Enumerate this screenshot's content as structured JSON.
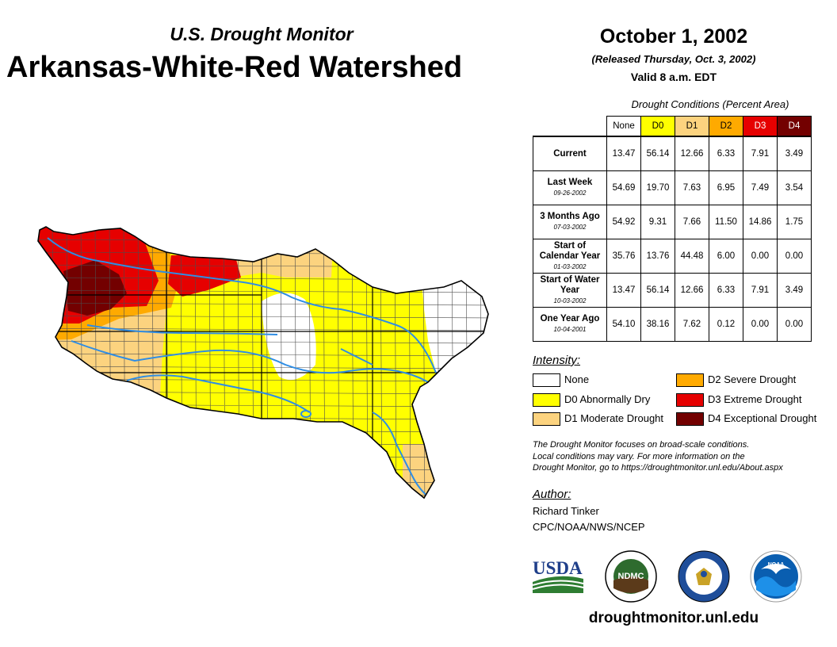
{
  "header": {
    "subtitle": "U.S. Drought Monitor",
    "title": "Arkansas-White-Red Watershed",
    "date": "October 1, 2002",
    "released": "(Released Thursday, Oct. 3, 2002)",
    "valid": "Valid 8 a.m. EDT"
  },
  "table": {
    "caption": "Drought Conditions (Percent Area)",
    "columns": [
      "None",
      "D0",
      "D1",
      "D2",
      "D3",
      "D4"
    ],
    "rows": [
      {
        "label": "Current",
        "date": "",
        "values": [
          "13.47",
          "56.14",
          "12.66",
          "6.33",
          "7.91",
          "3.49"
        ]
      },
      {
        "label": "Last Week",
        "date": "09-26-2002",
        "values": [
          "54.69",
          "19.70",
          "7.63",
          "6.95",
          "7.49",
          "3.54"
        ]
      },
      {
        "label": "3 Months Ago",
        "date": "07-03-2002",
        "values": [
          "54.92",
          "9.31",
          "7.66",
          "11.50",
          "14.86",
          "1.75"
        ]
      },
      {
        "label": "Start of Calendar Year",
        "date": "01-03-2002",
        "values": [
          "35.76",
          "13.76",
          "44.48",
          "6.00",
          "0.00",
          "0.00"
        ]
      },
      {
        "label": "Start of Water Year",
        "date": "10-03-2002",
        "values": [
          "13.47",
          "56.14",
          "12.66",
          "6.33",
          "7.91",
          "3.49"
        ]
      },
      {
        "label": "One Year Ago",
        "date": "10-04-2001",
        "values": [
          "54.10",
          "38.16",
          "7.62",
          "0.12",
          "0.00",
          "0.00"
        ]
      }
    ]
  },
  "legend": {
    "heading": "Intensity:",
    "items": [
      {
        "label": "None",
        "color": "#ffffff"
      },
      {
        "label": "D0 Abnormally Dry",
        "color": "#ffff00"
      },
      {
        "label": "D1 Moderate Drought",
        "color": "#fcd37f"
      },
      {
        "label": "D2 Severe Drought",
        "color": "#ffaa00"
      },
      {
        "label": "D3 Extreme Drought",
        "color": "#e60000"
      },
      {
        "label": "D4 Exceptional Drought",
        "color": "#730000"
      }
    ]
  },
  "note": {
    "line1": "The Drought Monitor focuses on broad-scale conditions.",
    "line2": "Local conditions may vary. For more information on the",
    "line3": "Drought Monitor, go to https://droughtmonitor.unl.edu/About.aspx"
  },
  "author": {
    "heading": "Author:",
    "name": "Richard Tinker",
    "org": "CPC/NOAA/NWS/NCEP"
  },
  "logos": {
    "usda": "USDA",
    "ndmc": "NDMC",
    "noaa": "NOAA"
  },
  "website": "droughtmonitor.unl.edu",
  "colors": {
    "river": "#2f8de4",
    "county_line": "#4d4d4d"
  }
}
